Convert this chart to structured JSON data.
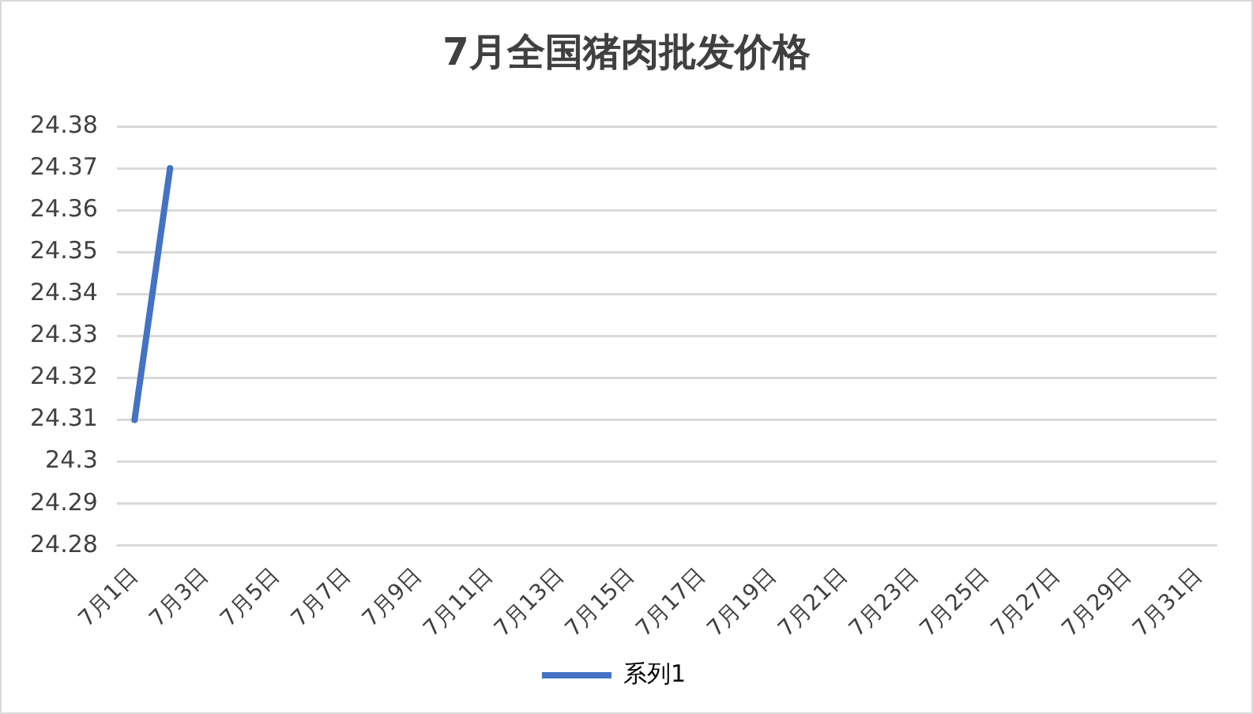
{
  "chart_data": {
    "type": "line",
    "title": "7月全国猪肉批发价格",
    "categories": [
      "7月1日",
      null,
      "7月3日",
      null,
      "7月5日",
      null,
      "7月7日",
      null,
      "7月9日",
      null,
      "7月11日",
      null,
      "7月13日",
      null,
      "7月15日",
      null,
      "7月17日",
      null,
      "7月19日",
      null,
      "7月21日",
      null,
      "7月23日",
      null,
      "7月25日",
      null,
      "7月27日",
      null,
      "7月29日",
      null,
      "7月31日"
    ],
    "series": [
      {
        "name": "系列1",
        "color": "#4472c4",
        "values": [
          24.31,
          24.37,
          null,
          null,
          null,
          null,
          null,
          null,
          null,
          null,
          null,
          null,
          null,
          null,
          null,
          null,
          null,
          null,
          null,
          null,
          null,
          null,
          null,
          null,
          null,
          null,
          null,
          null,
          null,
          null,
          null
        ]
      }
    ],
    "ylim": [
      24.28,
      24.38
    ],
    "yticks": [
      24.28,
      24.29,
      {
        "value": 24.3,
        "label": "24.3"
      },
      24.31,
      24.32,
      24.33,
      24.34,
      24.35,
      24.36,
      24.37,
      24.38
    ],
    "grid": "y",
    "legend": "bottom",
    "marker": "none",
    "line_style": "solid"
  }
}
